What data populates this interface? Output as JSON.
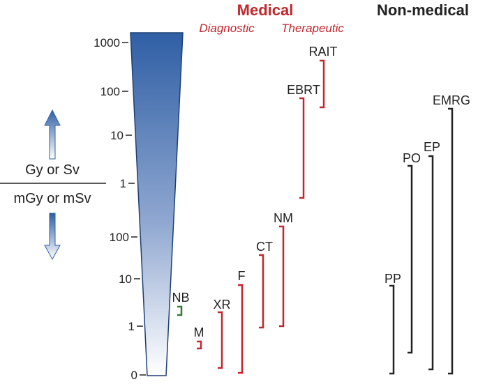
{
  "headers": {
    "medical": "Medical",
    "diagnostic": "Diagnostic",
    "therapeutic": "Therapeutic",
    "non_medical": "Non-medical"
  },
  "units": {
    "upper": "Gy or Sv",
    "lower": "mGy or mSv"
  },
  "axis_ticks": [
    "1000",
    "100",
    "10",
    "1",
    "100",
    "10",
    "1",
    "0"
  ],
  "exposures": {
    "nb": "NB",
    "m": "M",
    "xr": "XR",
    "f": "F",
    "ct": "CT",
    "nm": "NM",
    "ebrt": "EBRT",
    "rait": "RAIT",
    "pp": "PP",
    "po": "PO",
    "ep": "EP",
    "emrg": "EMRG"
  },
  "colors": {
    "medical": "#c1272d",
    "nb": "#2e7d32",
    "non_medical": "#222222",
    "wedge_top": "#2f5fa5",
    "wedge_bottom": "#ffffff"
  }
}
